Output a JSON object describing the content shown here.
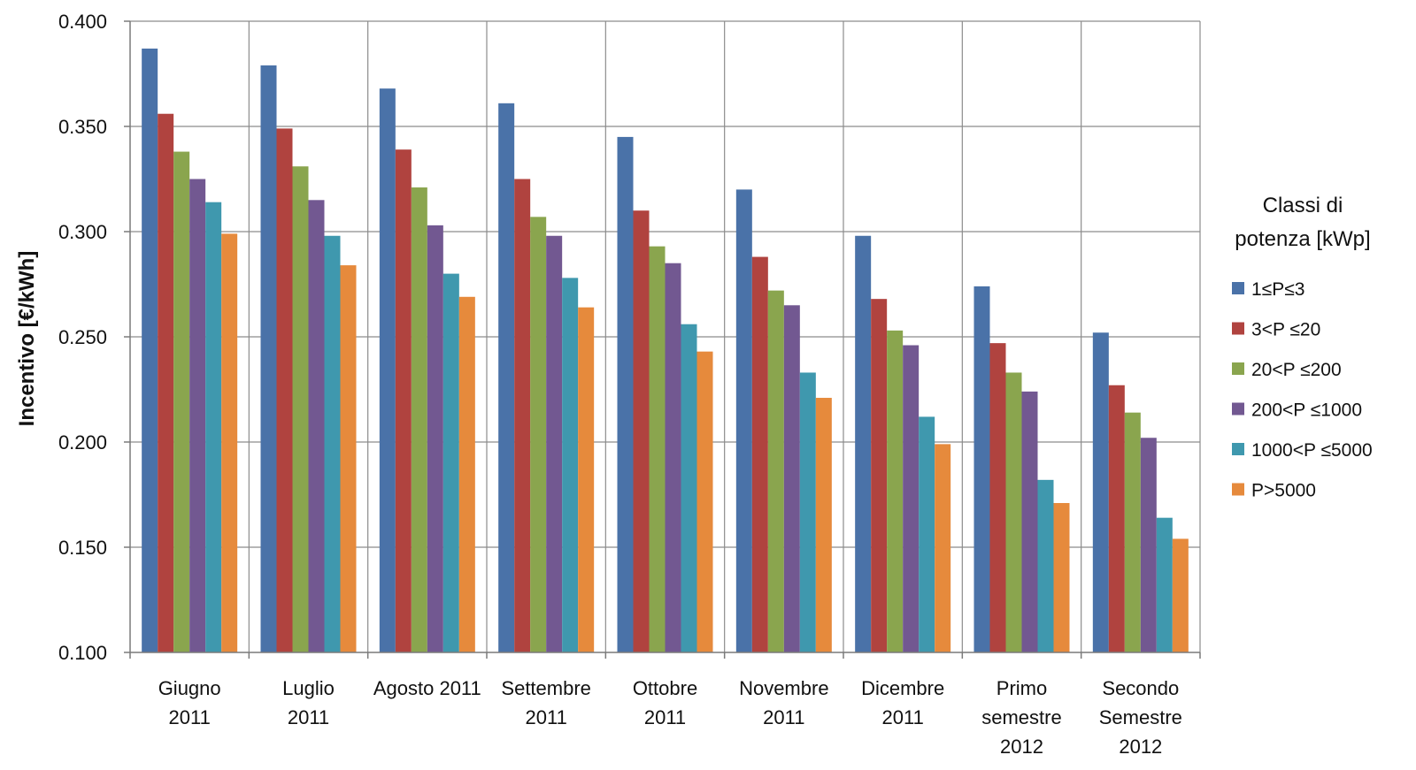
{
  "chart_data": {
    "type": "bar",
    "ylabel": "Incentivo [€/kWh]",
    "ylim": [
      0.1,
      0.4
    ],
    "yticks": [
      "0.100",
      "0.150",
      "0.200",
      "0.250",
      "0.300",
      "0.350",
      "0.400"
    ],
    "grid": "horizontal and vertical",
    "legend": {
      "title_lines": [
        "Classi di",
        "potenza [kWp]"
      ],
      "placement": "right"
    },
    "categories": [
      [
        "Giugno",
        "2011"
      ],
      [
        "Luglio",
        "2011"
      ],
      [
        "Agosto 2011"
      ],
      [
        "Settembre",
        "2011"
      ],
      [
        "Ottobre",
        "2011"
      ],
      [
        "Novembre",
        "2011"
      ],
      [
        "Dicembre",
        "2011"
      ],
      [
        "Primo",
        "semestre",
        "2012"
      ],
      [
        "Secondo",
        "Semestre",
        "2012"
      ]
    ],
    "series": [
      {
        "name": "1≤P≤3",
        "color": "#4A72A8",
        "values": [
          0.387,
          0.379,
          0.368,
          0.361,
          0.345,
          0.32,
          0.298,
          0.274,
          0.252
        ]
      },
      {
        "name": "3<P ≤20",
        "color": "#B0433F",
        "values": [
          0.356,
          0.349,
          0.339,
          0.325,
          0.31,
          0.288,
          0.268,
          0.247,
          0.227
        ]
      },
      {
        "name": "20<P ≤200",
        "color": "#8AA54E",
        "values": [
          0.338,
          0.331,
          0.321,
          0.307,
          0.293,
          0.272,
          0.253,
          0.233,
          0.214
        ]
      },
      {
        "name": "200<P ≤1000",
        "color": "#725891",
        "values": [
          0.325,
          0.315,
          0.303,
          0.298,
          0.285,
          0.265,
          0.246,
          0.224,
          0.202
        ]
      },
      {
        "name": "1000<P ≤5000",
        "color": "#3F98AE",
        "values": [
          0.314,
          0.298,
          0.28,
          0.278,
          0.256,
          0.233,
          0.212,
          0.182,
          0.164
        ]
      },
      {
        "name": "P>5000",
        "color": "#E68A3C",
        "values": [
          0.299,
          0.284,
          0.269,
          0.264,
          0.243,
          0.221,
          0.199,
          0.171,
          0.154
        ]
      }
    ]
  }
}
